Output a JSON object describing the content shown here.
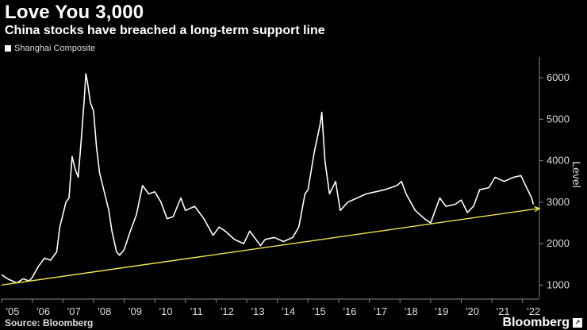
{
  "header": {
    "title": "Love You 3,000",
    "subtitle": "China stocks have breached a long-term support line"
  },
  "footer": {
    "source": "Source: Bloomberg",
    "brand": "Bloomberg"
  },
  "colors": {
    "background": "#000000",
    "series": "#ffffff",
    "trendline": "#f2e54b"
  },
  "chart_data": {
    "type": "line",
    "ylabel": "Level",
    "ylim": [
      700,
      6500
    ],
    "xlim": [
      2005.0,
      2022.55
    ],
    "y_ticks": [
      1000,
      2000,
      3000,
      4000,
      5000,
      6000
    ],
    "x_ticks": [
      "'05",
      "'06",
      "'07",
      "'08",
      "'09",
      "'10",
      "'11",
      "'12",
      "'13",
      "'14",
      "'15",
      "'16",
      "'17",
      "'18",
      "'19",
      "'20",
      "'21",
      "'22"
    ],
    "grid": false,
    "legend_position": "top-left",
    "series": [
      {
        "name": "Shanghai Composite",
        "x": [
          2005.0,
          2005.2,
          2005.4,
          2005.5,
          2005.7,
          2005.9,
          2006.0,
          2006.2,
          2006.4,
          2006.6,
          2006.8,
          2006.9,
          2007.0,
          2007.1,
          2007.2,
          2007.3,
          2007.4,
          2007.5,
          2007.6,
          2007.7,
          2007.75,
          2007.8,
          2007.9,
          2008.0,
          2008.1,
          2008.2,
          2008.3,
          2008.5,
          2008.6,
          2008.75,
          2008.85,
          2009.0,
          2009.2,
          2009.4,
          2009.6,
          2009.8,
          2010.0,
          2010.2,
          2010.4,
          2010.6,
          2010.85,
          2011.0,
          2011.3,
          2011.6,
          2011.9,
          2012.1,
          2012.3,
          2012.6,
          2012.9,
          2013.1,
          2013.45,
          2013.6,
          2013.9,
          2014.2,
          2014.5,
          2014.7,
          2014.9,
          2015.0,
          2015.2,
          2015.4,
          2015.45,
          2015.55,
          2015.7,
          2015.9,
          2016.05,
          2016.3,
          2016.6,
          2016.9,
          2017.2,
          2017.5,
          2017.9,
          2018.05,
          2018.2,
          2018.5,
          2018.8,
          2019.0,
          2019.3,
          2019.5,
          2019.8,
          2020.0,
          2020.2,
          2020.4,
          2020.6,
          2020.9,
          2021.1,
          2021.4,
          2021.7,
          2021.95,
          2022.1,
          2022.3,
          2022.35
        ],
        "values": [
          1250,
          1150,
          1080,
          1050,
          1150,
          1100,
          1180,
          1450,
          1650,
          1600,
          1800,
          2400,
          2700,
          3000,
          3100,
          4100,
          3800,
          3600,
          4500,
          5500,
          6100,
          5900,
          5400,
          5200,
          4300,
          3700,
          3400,
          2800,
          2300,
          1800,
          1720,
          1850,
          2300,
          2700,
          3400,
          3200,
          3250,
          3000,
          2600,
          2650,
          3100,
          2800,
          2900,
          2600,
          2200,
          2400,
          2300,
          2100,
          2000,
          2300,
          1950,
          2100,
          2150,
          2050,
          2150,
          2400,
          3200,
          3300,
          4200,
          4900,
          5170,
          4000,
          3200,
          3500,
          2800,
          3000,
          3100,
          3200,
          3250,
          3300,
          3400,
          3500,
          3200,
          2800,
          2600,
          2500,
          3100,
          2900,
          2950,
          3050,
          2750,
          2900,
          3300,
          3350,
          3600,
          3500,
          3600,
          3640,
          3400,
          3100,
          2950
        ]
      }
    ],
    "trendline": {
      "x": [
        2005.0,
        2022.55
      ],
      "values": [
        1000,
        2850
      ]
    }
  }
}
